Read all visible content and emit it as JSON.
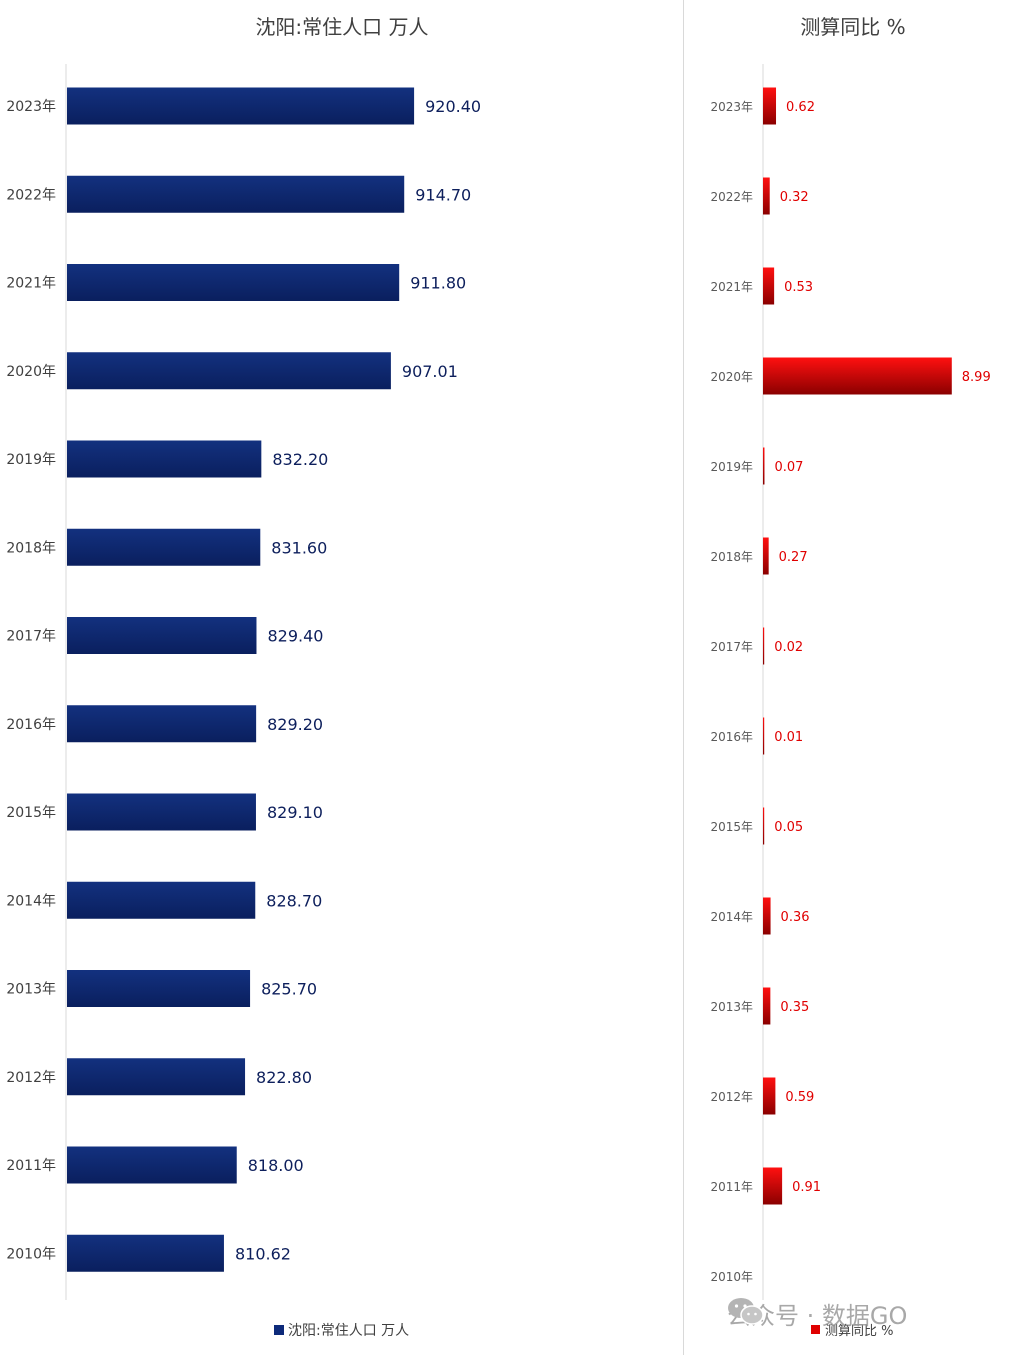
{
  "chart_data": [
    {
      "type": "bar",
      "orientation": "horizontal",
      "title": "沈阳:常住人口 万人",
      "categories": [
        "2023年",
        "2022年",
        "2021年",
        "2020年",
        "2019年",
        "2018年",
        "2017年",
        "2016年",
        "2015年",
        "2014年",
        "2013年",
        "2012年",
        "2011年",
        "2010年"
      ],
      "series": [
        {
          "name": "沈阳:常住人口 万人",
          "values": [
            920.4,
            914.7,
            911.8,
            907.01,
            832.2,
            831.6,
            829.4,
            829.2,
            829.1,
            828.7,
            825.7,
            822.8,
            818.0,
            810.62
          ]
        }
      ],
      "value_labels": [
        "920.40",
        "914.70",
        "911.80",
        "907.01",
        "832.20",
        "831.60",
        "829.40",
        "829.20",
        "829.10",
        "828.70",
        "825.70",
        "822.80",
        "818.00",
        "810.62"
      ],
      "xlim": [
        720,
        1000
      ],
      "legend": "bottom",
      "color": "#0d2a7a",
      "grid": false
    },
    {
      "type": "bar",
      "orientation": "horizontal",
      "title": "测算同比 %",
      "categories": [
        "2023年",
        "2022年",
        "2021年",
        "2020年",
        "2019年",
        "2018年",
        "2017年",
        "2016年",
        "2015年",
        "2014年",
        "2013年",
        "2012年",
        "2011年",
        "2010年"
      ],
      "series": [
        {
          "name": "测算同比 %",
          "values": [
            0.62,
            0.32,
            0.53,
            8.99,
            0.07,
            0.27,
            0.02,
            0.01,
            0.05,
            0.36,
            0.35,
            0.59,
            0.91,
            null
          ]
        }
      ],
      "value_labels": [
        "0.62",
        "0.32",
        "0.53",
        "8.99",
        "0.07",
        "0.27",
        "0.02",
        "0.01",
        "0.05",
        "0.36",
        "0.35",
        "0.59",
        "0.91",
        ""
      ],
      "xlim": [
        0,
        10.5
      ],
      "legend": "bottom",
      "color": "#e00000",
      "grid": false
    }
  ],
  "watermark": {
    "text": "公众号 · 数据GO",
    "icon": "wechat-icon"
  }
}
